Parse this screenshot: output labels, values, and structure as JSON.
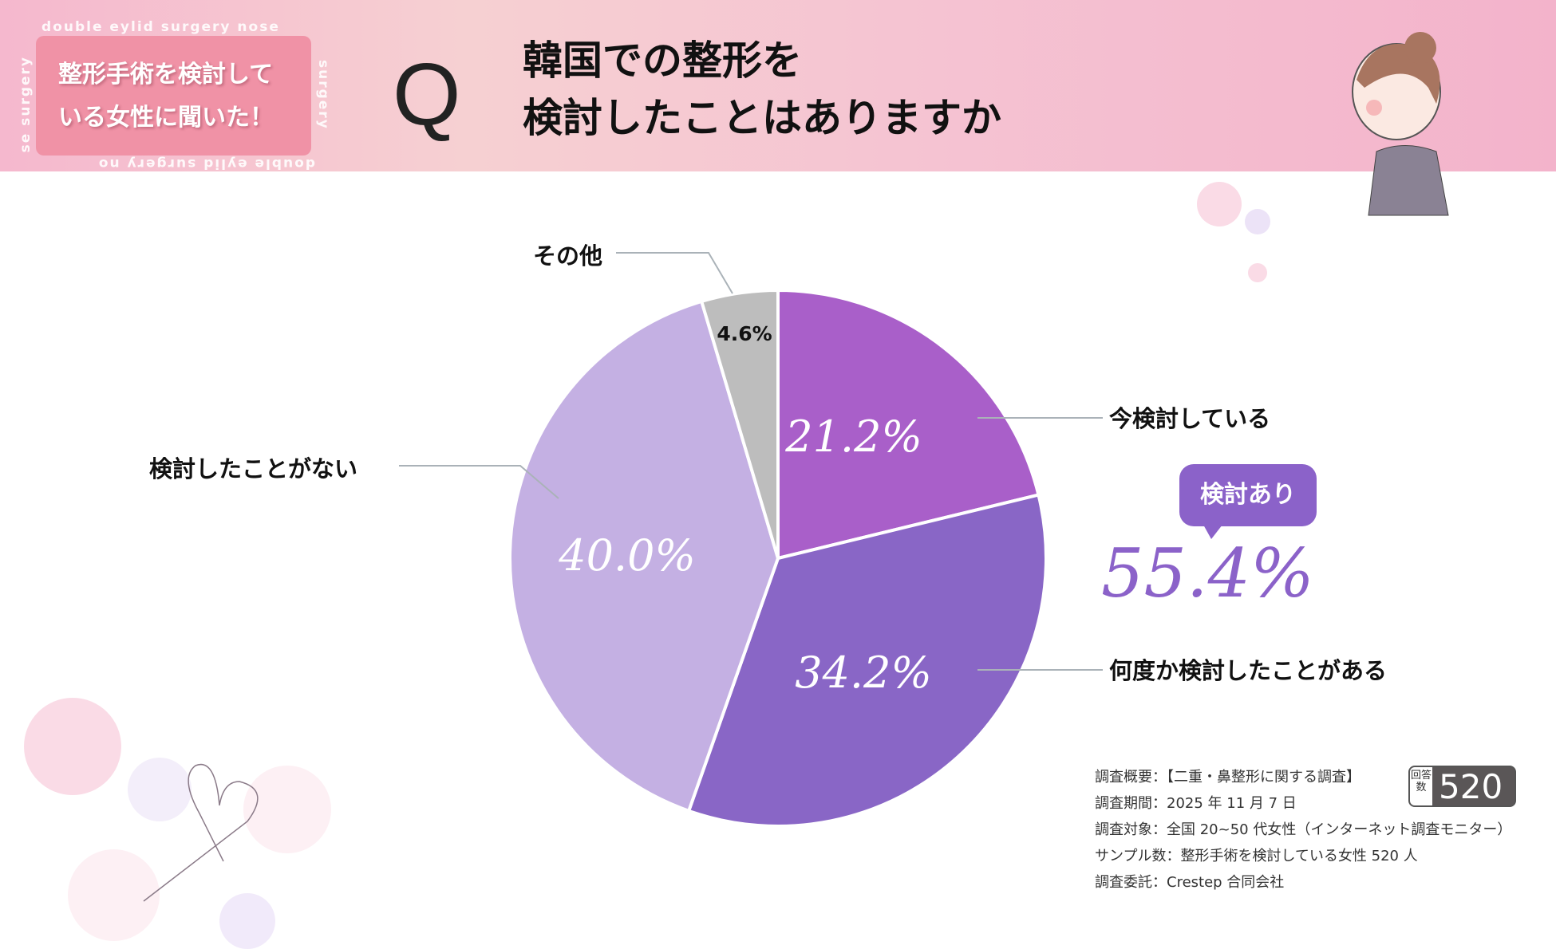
{
  "header": {
    "badge": "整形手術を検討している女性に聞いた！",
    "badge_line1": "整形手術を検討して",
    "badge_line2": "いる女性に聞いた！",
    "deco_top": "double eylid surgery  nose",
    "deco_right": "surgery",
    "deco_bottom": "double eylid surgery  no",
    "deco_left": "se surgery",
    "q": "Q",
    "title_line1": "韓国での整形を",
    "title_line2": "検討したことはありますか"
  },
  "chart_data": {
    "type": "pie",
    "categories": [
      "今検討している",
      "何度か検討したことがある",
      "検討したことがない",
      "その他"
    ],
    "values": [
      21.2,
      34.2,
      40.0,
      4.6
    ],
    "value_labels": [
      "21.2%",
      "34.2%",
      "40.0%",
      "4.6%"
    ],
    "colors": [
      "#a95fc9",
      "#8966c6",
      "#c4b0e3",
      "#bdbdbd"
    ]
  },
  "summary": {
    "bubble": "検討あり",
    "value": "55.4%"
  },
  "info": {
    "lines": [
      "調査概要：【二重・鼻整形に関する調査】",
      "調査期間：2025 年 11 月 7 日",
      "調査対象：全国 20~50 代女性（インターネット調査モニター）",
      "サンプル数：整形手術を検討している女性 520 人",
      "調査委託：Crestep 合同会社"
    ],
    "count_label": "回答数",
    "count": "520"
  }
}
